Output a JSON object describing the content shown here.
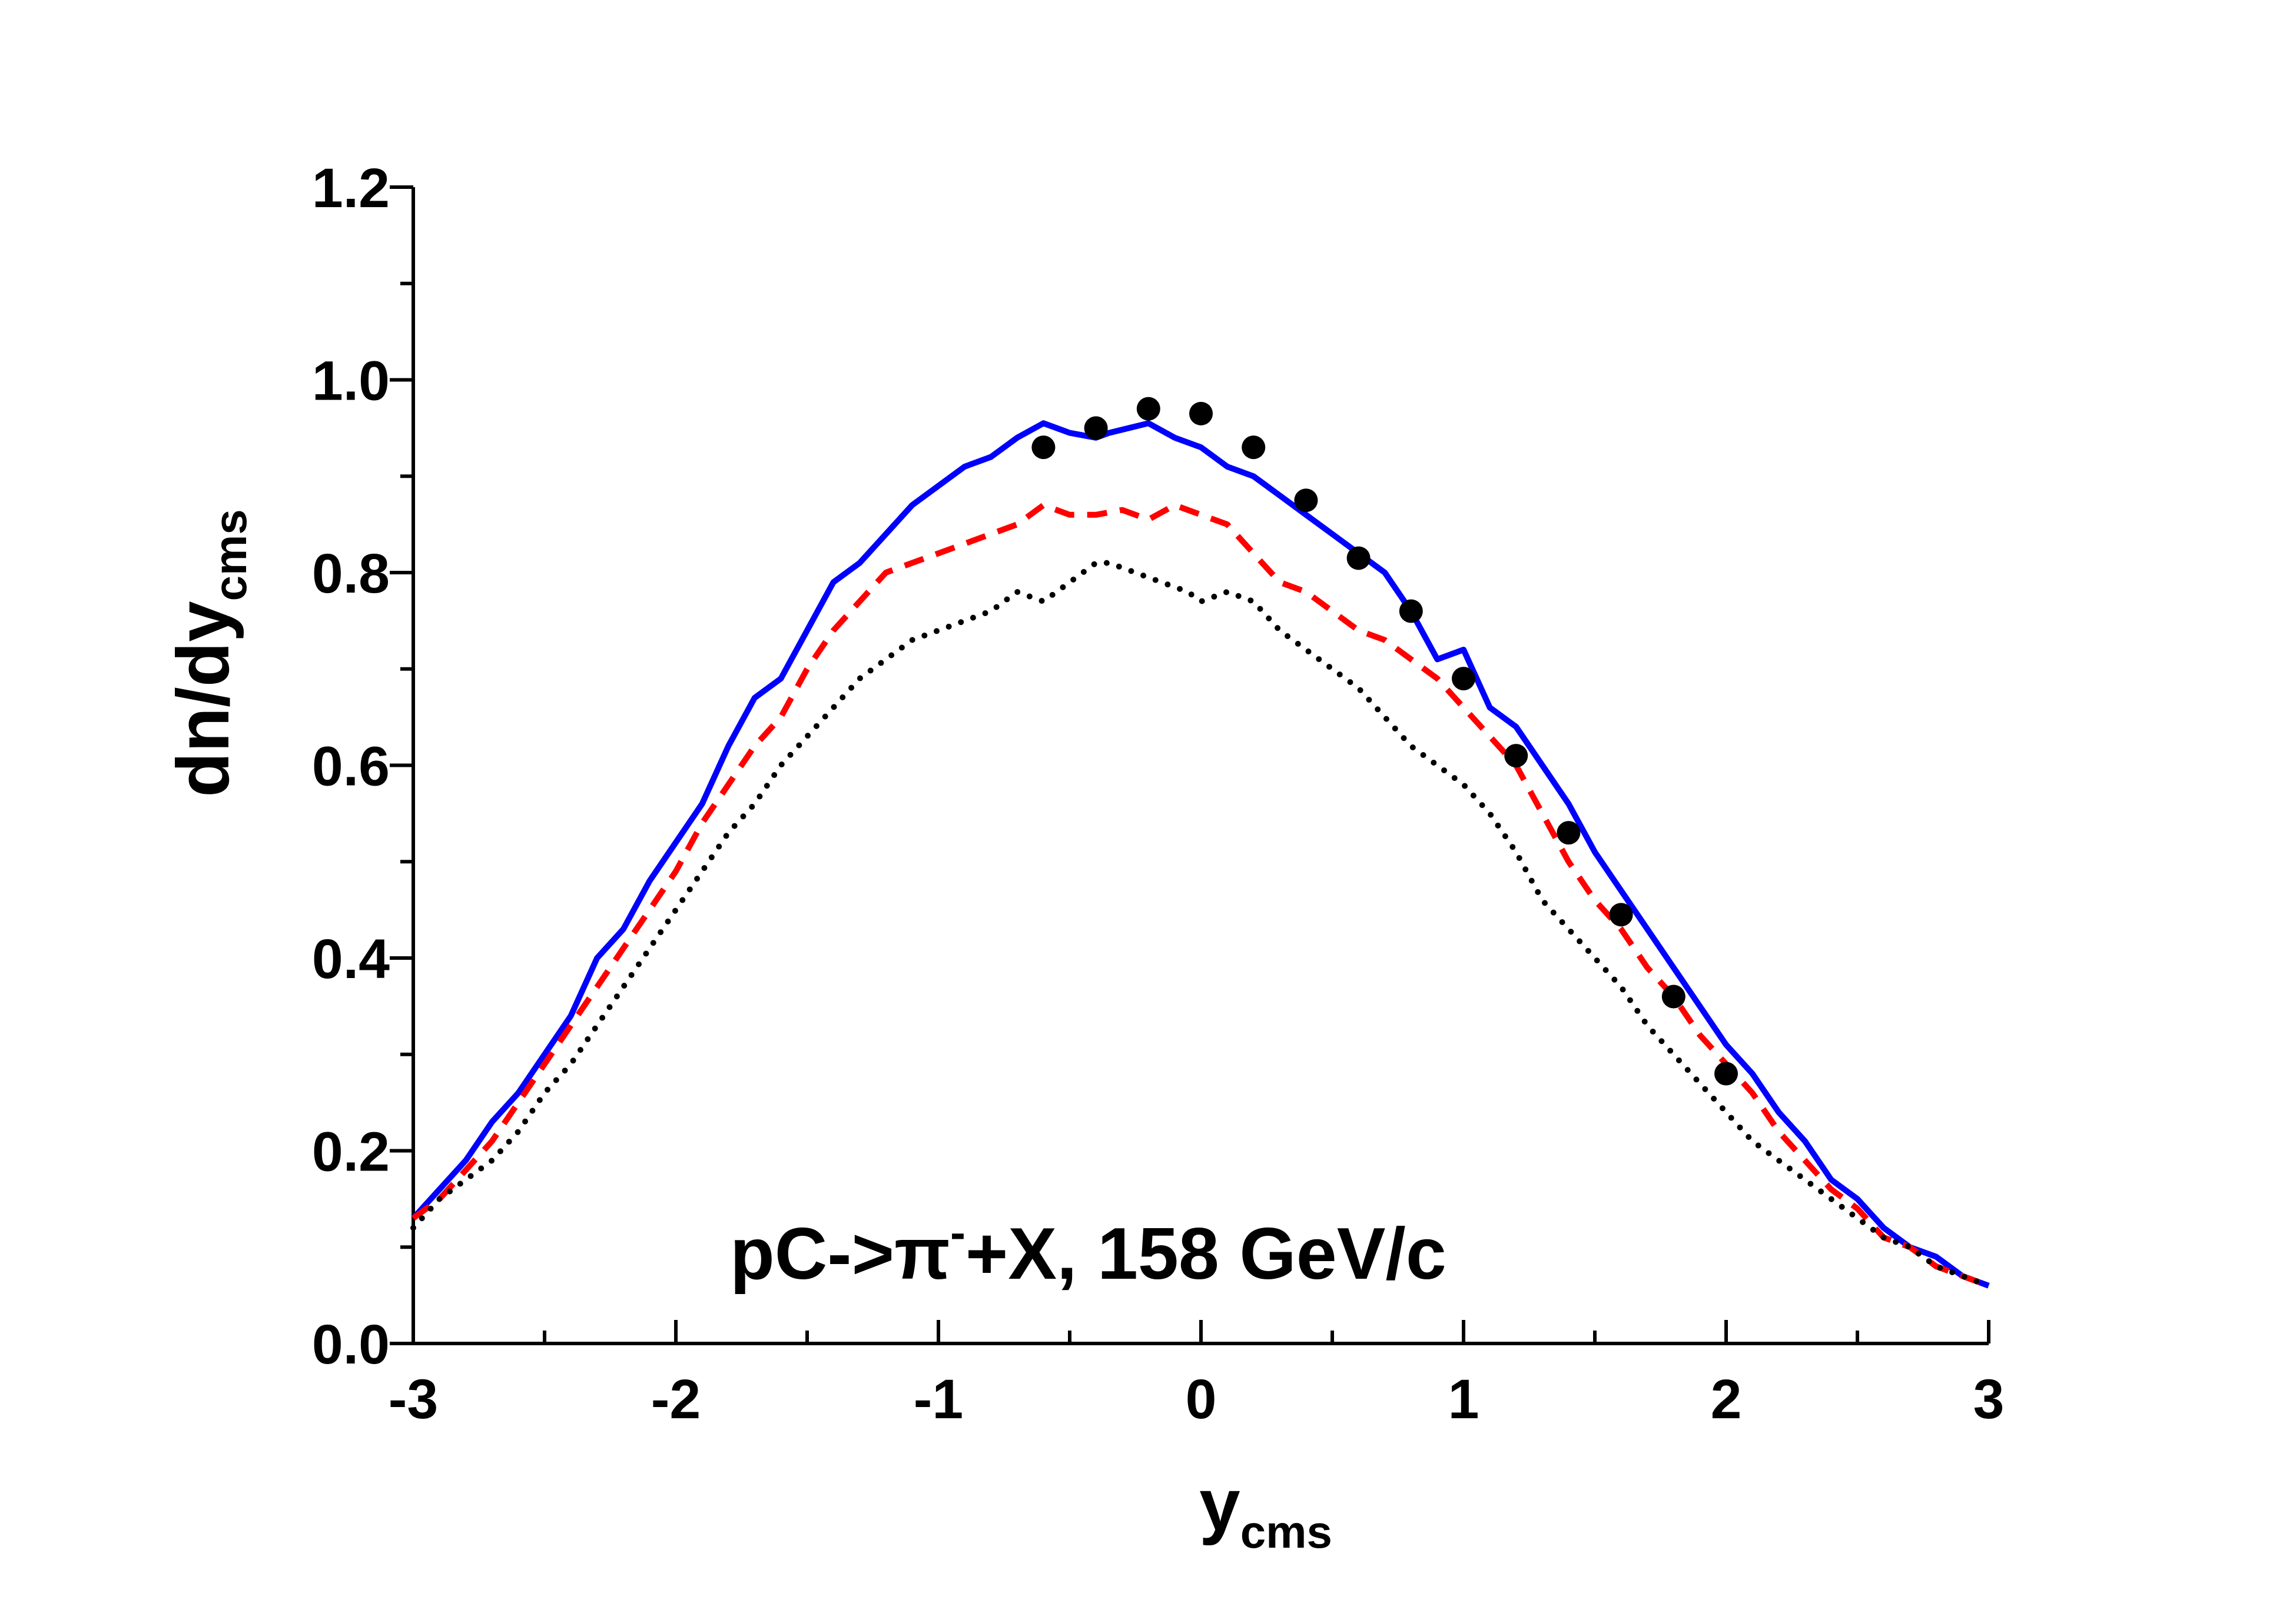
{
  "chart_data": {
    "type": "line",
    "title": "",
    "annotation": {
      "prefix": "pC->",
      "particle": "π",
      "charge": "-",
      "suffix": "+X, 158 GeV/c"
    },
    "xlabel": {
      "main": "y",
      "sub": "cms"
    },
    "ylabel": {
      "main": "dn/dy",
      "sub": "cms"
    },
    "xlim": [
      -3,
      3
    ],
    "ylim": [
      0,
      1.2
    ],
    "xticks": [
      -3,
      -2,
      -1,
      0,
      1,
      2,
      3
    ],
    "xtick_labels": [
      "-3",
      "-2",
      "-1",
      "0",
      "1",
      "2",
      "3"
    ],
    "yticks": [
      0,
      0.2,
      0.4,
      0.6,
      0.8,
      1.0,
      1.2
    ],
    "ytick_labels": [
      "0.0",
      "0.2",
      "0.4",
      "0.6",
      "0.8",
      "1.0",
      "1.2"
    ],
    "grid": false,
    "legend": "none",
    "colors": {
      "axis": "#000000",
      "solid": "#0000ff",
      "dashed": "#ff0000",
      "dotted": "#000000",
      "points": "#000000"
    },
    "series": [
      {
        "name": "solid",
        "style": "solid",
        "color": "#0000ff",
        "x": [
          -3.0,
          -2.9,
          -2.8,
          -2.7,
          -2.6,
          -2.5,
          -2.4,
          -2.3,
          -2.2,
          -2.1,
          -2.0,
          -1.9,
          -1.8,
          -1.7,
          -1.6,
          -1.5,
          -1.4,
          -1.3,
          -1.2,
          -1.1,
          -1.0,
          -0.9,
          -0.8,
          -0.7,
          -0.6,
          -0.5,
          -0.4,
          -0.35,
          -0.2,
          -0.1,
          0.0,
          0.1,
          0.2,
          0.3,
          0.4,
          0.5,
          0.6,
          0.7,
          0.8,
          0.9,
          1.0,
          1.1,
          1.2,
          1.3,
          1.4,
          1.5,
          1.6,
          1.7,
          1.8,
          1.9,
          2.0,
          2.1,
          2.2,
          2.3,
          2.4,
          2.5,
          2.6,
          2.7,
          2.8,
          2.9,
          3.0
        ],
        "values": [
          0.13,
          0.16,
          0.19,
          0.23,
          0.26,
          0.3,
          0.34,
          0.4,
          0.43,
          0.48,
          0.52,
          0.56,
          0.62,
          0.67,
          0.69,
          0.74,
          0.79,
          0.81,
          0.84,
          0.87,
          0.89,
          0.91,
          0.92,
          0.94,
          0.955,
          0.945,
          0.94,
          0.945,
          0.955,
          0.94,
          0.93,
          0.91,
          0.9,
          0.88,
          0.86,
          0.84,
          0.82,
          0.8,
          0.76,
          0.71,
          0.72,
          0.66,
          0.64,
          0.6,
          0.56,
          0.51,
          0.47,
          0.43,
          0.39,
          0.35,
          0.31,
          0.28,
          0.24,
          0.21,
          0.17,
          0.15,
          0.12,
          0.1,
          0.09,
          0.07,
          0.06
        ]
      },
      {
        "name": "dashed",
        "style": "dashed",
        "color": "#ff0000",
        "x": [
          -3.0,
          -2.9,
          -2.8,
          -2.7,
          -2.6,
          -2.5,
          -2.4,
          -2.3,
          -2.2,
          -2.1,
          -2.0,
          -1.9,
          -1.8,
          -1.7,
          -1.6,
          -1.5,
          -1.4,
          -1.3,
          -1.2,
          -1.1,
          -1.0,
          -0.9,
          -0.8,
          -0.7,
          -0.6,
          -0.5,
          -0.4,
          -0.3,
          -0.2,
          -0.1,
          0.0,
          0.1,
          0.2,
          0.3,
          0.4,
          0.5,
          0.6,
          0.7,
          0.8,
          0.9,
          1.0,
          1.1,
          1.2,
          1.3,
          1.4,
          1.5,
          1.6,
          1.7,
          1.8,
          1.9,
          2.0,
          2.1,
          2.2,
          2.3,
          2.4,
          2.5,
          2.6,
          2.7,
          2.8,
          2.9,
          3.0
        ],
        "values": [
          0.13,
          0.15,
          0.18,
          0.21,
          0.25,
          0.29,
          0.33,
          0.37,
          0.41,
          0.45,
          0.49,
          0.54,
          0.58,
          0.62,
          0.65,
          0.7,
          0.74,
          0.77,
          0.8,
          0.81,
          0.82,
          0.83,
          0.84,
          0.85,
          0.87,
          0.86,
          0.86,
          0.865,
          0.855,
          0.87,
          0.86,
          0.85,
          0.82,
          0.79,
          0.78,
          0.76,
          0.74,
          0.73,
          0.71,
          0.69,
          0.66,
          0.63,
          0.6,
          0.55,
          0.5,
          0.46,
          0.43,
          0.39,
          0.36,
          0.32,
          0.29,
          0.26,
          0.22,
          0.19,
          0.16,
          0.14,
          0.11,
          0.1,
          0.08,
          0.07,
          0.06
        ]
      },
      {
        "name": "dotted",
        "style": "dotted",
        "color": "#000000",
        "x": [
          -3.0,
          -2.9,
          -2.8,
          -2.7,
          -2.6,
          -2.5,
          -2.4,
          -2.3,
          -2.2,
          -2.1,
          -2.0,
          -1.9,
          -1.8,
          -1.7,
          -1.6,
          -1.5,
          -1.4,
          -1.3,
          -1.2,
          -1.1,
          -1.0,
          -0.9,
          -0.8,
          -0.7,
          -0.6,
          -0.5,
          -0.4,
          -0.35,
          -0.25,
          -0.15,
          -0.05,
          0.0,
          0.1,
          0.2,
          0.3,
          0.4,
          0.5,
          0.6,
          0.7,
          0.8,
          0.9,
          1.0,
          1.1,
          1.2,
          1.3,
          1.4,
          1.5,
          1.6,
          1.7,
          1.8,
          1.9,
          2.0,
          2.1,
          2.2,
          2.3,
          2.4,
          2.5,
          2.6,
          2.7,
          2.8,
          2.9,
          3.0
        ],
        "values": [
          0.12,
          0.15,
          0.17,
          0.19,
          0.22,
          0.26,
          0.29,
          0.33,
          0.37,
          0.41,
          0.45,
          0.49,
          0.53,
          0.56,
          0.6,
          0.63,
          0.66,
          0.69,
          0.71,
          0.73,
          0.74,
          0.75,
          0.76,
          0.78,
          0.77,
          0.79,
          0.81,
          0.81,
          0.8,
          0.79,
          0.78,
          0.77,
          0.78,
          0.77,
          0.74,
          0.72,
          0.7,
          0.68,
          0.65,
          0.62,
          0.6,
          0.58,
          0.55,
          0.51,
          0.46,
          0.43,
          0.4,
          0.37,
          0.33,
          0.3,
          0.27,
          0.24,
          0.21,
          0.19,
          0.17,
          0.15,
          0.13,
          0.11,
          0.1,
          0.08,
          0.07,
          0.06
        ]
      },
      {
        "name": "data",
        "style": "points",
        "color": "#000000",
        "x": [
          -0.6,
          -0.4,
          -0.2,
          0.0,
          0.2,
          0.4,
          0.6,
          0.8,
          1.0,
          1.2,
          1.4,
          1.6,
          1.8,
          2.0
        ],
        "values": [
          0.93,
          0.95,
          0.97,
          0.965,
          0.93,
          0.875,
          0.815,
          0.76,
          0.69,
          0.61,
          0.53,
          0.445,
          0.36,
          0.28
        ]
      }
    ]
  }
}
